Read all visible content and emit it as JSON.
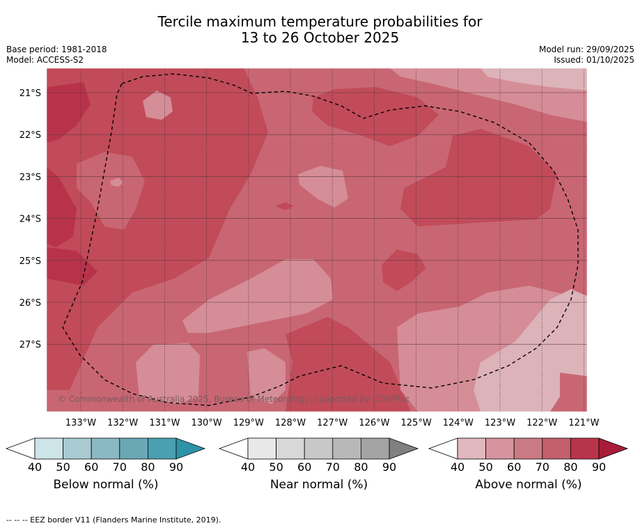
{
  "title": {
    "line1": "Tercile maximum temperature probabilities for",
    "line2": "13 to 26 October 2025"
  },
  "meta_left": {
    "base_period": "Base period: 1981-2018",
    "model": "Model: ACCESS-S2"
  },
  "meta_right": {
    "model_run": "Model run: 29/09/2025",
    "issued": "Issued: 01/10/2025"
  },
  "map": {
    "lat_labels": [
      "21°S",
      "22°S",
      "23°S",
      "24°S",
      "25°S",
      "26°S",
      "27°S"
    ],
    "lon_labels": [
      "133°W",
      "132°W",
      "131°W",
      "130°W",
      "129°W",
      "128°W",
      "127°W",
      "126°W",
      "125°W",
      "124°W",
      "123°W",
      "122°W",
      "121°W"
    ],
    "copyright": "© Commonwealth of Australia 2025, Bureau of Meteorology, supported by COSPPac",
    "colors": {
      "above_50": "#dbb3b9",
      "above_60": "#d58d97",
      "above_70": "#c96673",
      "above_80": "#c14b59",
      "above_90": "#b8334a"
    }
  },
  "legends": [
    {
      "name": "below",
      "title": "Below normal (%)",
      "ticks": [
        "40",
        "50",
        "60",
        "70",
        "80",
        "90"
      ],
      "colors": [
        "#cde4e8",
        "#a9cbd1",
        "#8ab8c3",
        "#6aa8b5",
        "#4aa0b0",
        "#2e93a8"
      ]
    },
    {
      "name": "near",
      "title": "Near normal (%)",
      "ticks": [
        "40",
        "50",
        "60",
        "70",
        "80",
        "90"
      ],
      "colors": [
        "#e8e8e8",
        "#d8d8d8",
        "#c8c8c8",
        "#b8b8b8",
        "#a4a4a4",
        "#808080"
      ]
    },
    {
      "name": "above",
      "title": "Above normal (%)",
      "ticks": [
        "40",
        "50",
        "60",
        "70",
        "80",
        "90"
      ],
      "colors": [
        "#e0b8bd",
        "#d5949d",
        "#ca7a84",
        "#c45f6c",
        "#b8344b",
        "#a81c3a"
      ]
    }
  ],
  "footnote": "--  --  -- EEZ border V11 (Flanders Marine Institute, 2019)."
}
